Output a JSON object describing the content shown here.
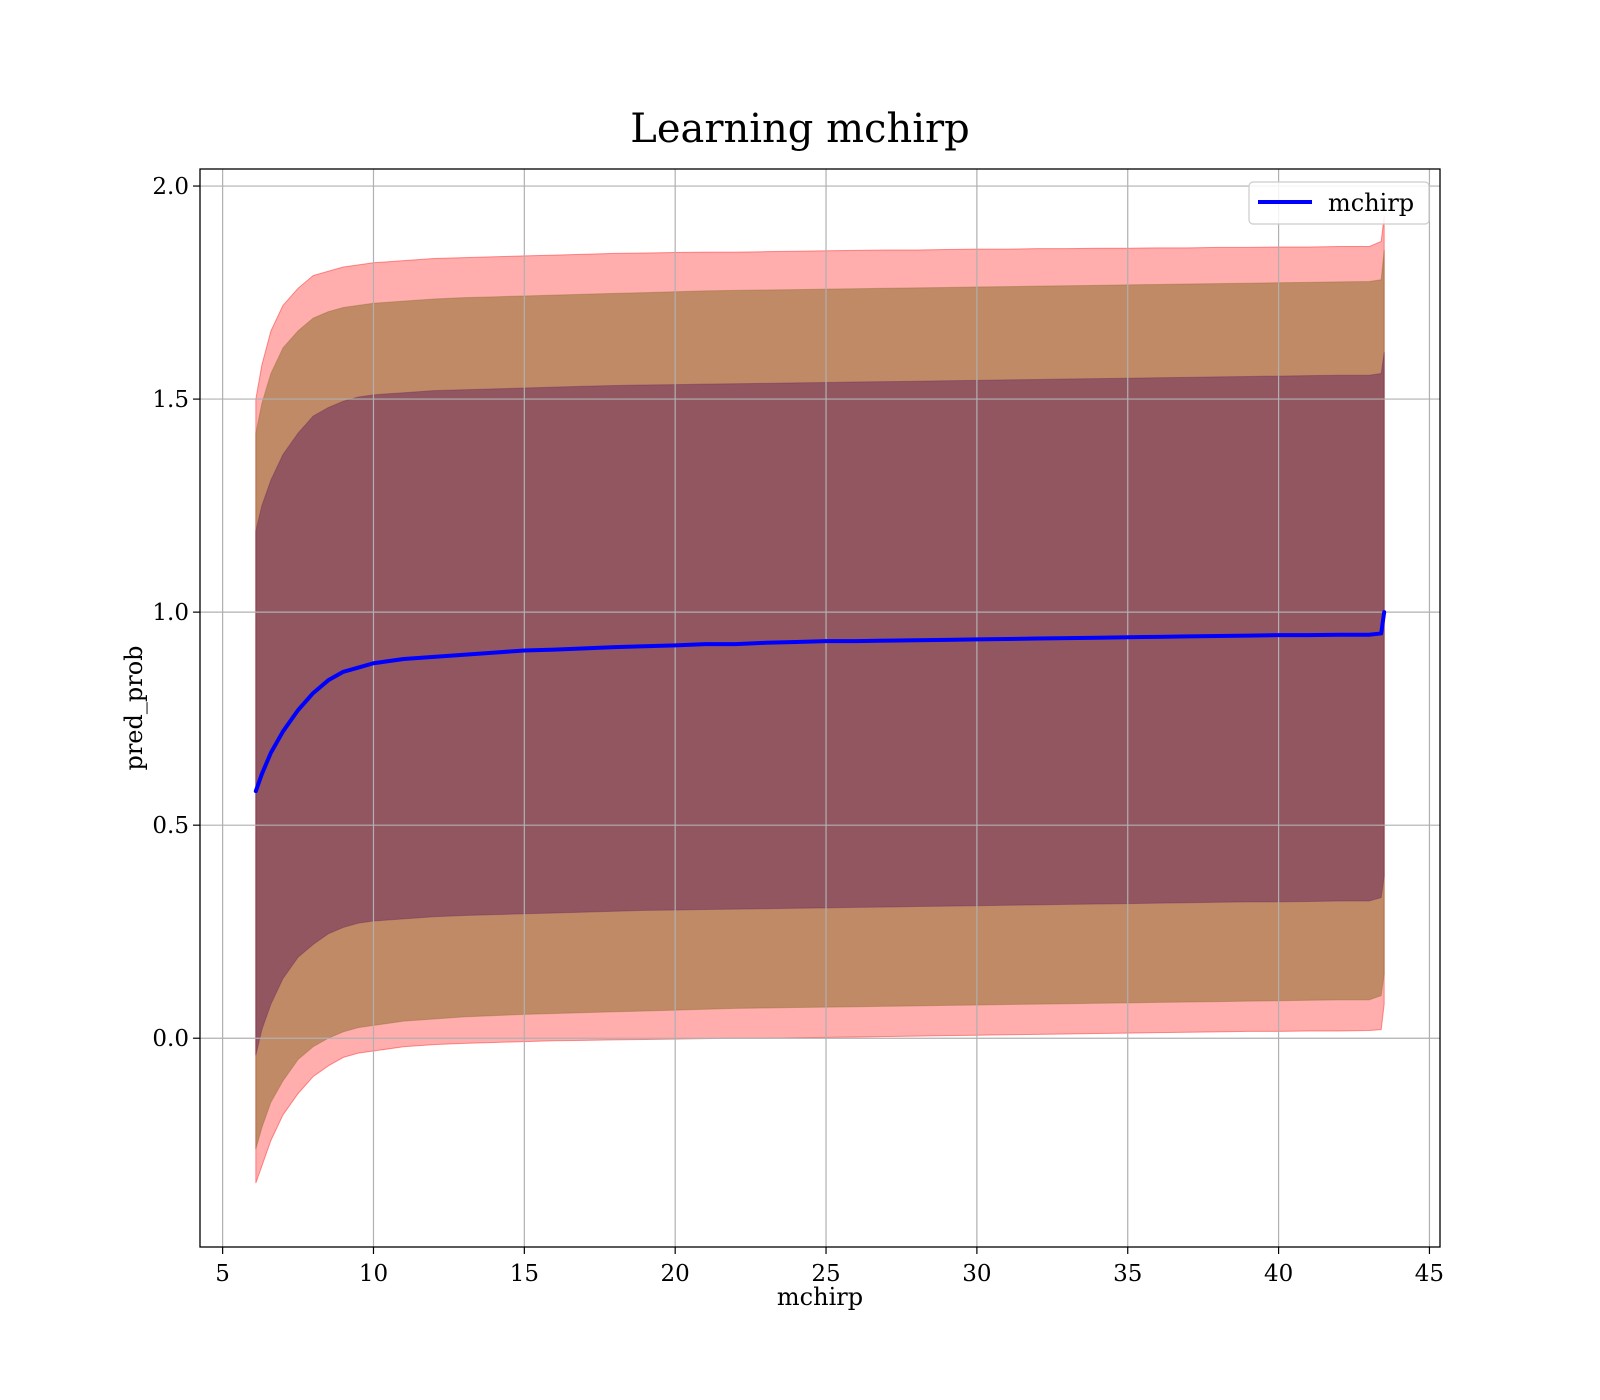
{
  "chart_data": {
    "type": "line",
    "title": "Learning mchirp",
    "xlabel": "mchirp",
    "ylabel": "pred_prob",
    "xlim": [
      4.25,
      45.35
    ],
    "ylim": [
      -0.49,
      2.04
    ],
    "xticks": [
      5,
      10,
      15,
      20,
      25,
      30,
      35,
      40,
      45
    ],
    "yticks": [
      0.0,
      0.5,
      1.0,
      1.5,
      2.0
    ],
    "ytick_labels": [
      "0.0",
      "0.5",
      "1.0",
      "1.5",
      "2.0"
    ],
    "grid": true,
    "legend": {
      "position": "top-right",
      "entries": [
        "mchirp"
      ]
    },
    "colors": {
      "line": "#0000ff",
      "band_outer": "#ff0000",
      "band_middle": "#8c6d2c",
      "band_inner": "#6b2b5c",
      "grid": "#b0b0b0"
    },
    "x": [
      6.1,
      6.3,
      6.6,
      7.0,
      7.5,
      8.0,
      8.5,
      9.0,
      9.5,
      10.0,
      11.0,
      12.0,
      13.0,
      14.0,
      15.0,
      16.0,
      17.0,
      18.0,
      19.0,
      20.0,
      21.0,
      22.0,
      23.0,
      24.0,
      25.0,
      26.0,
      27.0,
      28.0,
      29.0,
      30.0,
      31.0,
      32.0,
      33.0,
      34.0,
      35.0,
      36.0,
      37.0,
      38.0,
      39.0,
      40.0,
      41.0,
      42.0,
      43.0,
      43.4,
      43.5
    ],
    "series": [
      {
        "name": "mchirp",
        "values": [
          0.58,
          0.62,
          0.67,
          0.72,
          0.77,
          0.81,
          0.84,
          0.86,
          0.87,
          0.88,
          0.89,
          0.895,
          0.9,
          0.905,
          0.91,
          0.912,
          0.915,
          0.918,
          0.92,
          0.922,
          0.925,
          0.925,
          0.928,
          0.93,
          0.932,
          0.932,
          0.933,
          0.934,
          0.935,
          0.936,
          0.937,
          0.938,
          0.939,
          0.94,
          0.941,
          0.942,
          0.943,
          0.944,
          0.945,
          0.946,
          0.946,
          0.947,
          0.947,
          0.95,
          1.0
        ]
      }
    ],
    "bands": [
      {
        "level": "outer",
        "upper": [
          1.5,
          1.58,
          1.66,
          1.72,
          1.76,
          1.79,
          1.8,
          1.81,
          1.815,
          1.82,
          1.825,
          1.83,
          1.832,
          1.834,
          1.836,
          1.838,
          1.84,
          1.842,
          1.843,
          1.844,
          1.845,
          1.845,
          1.846,
          1.847,
          1.848,
          1.849,
          1.85,
          1.85,
          1.851,
          1.852,
          1.852,
          1.853,
          1.853,
          1.854,
          1.854,
          1.855,
          1.855,
          1.856,
          1.856,
          1.857,
          1.857,
          1.858,
          1.858,
          1.87,
          1.93
        ],
        "lower": [
          -0.34,
          -0.3,
          -0.24,
          -0.18,
          -0.13,
          -0.09,
          -0.065,
          -0.045,
          -0.035,
          -0.03,
          -0.02,
          -0.015,
          -0.012,
          -0.01,
          -0.008,
          -0.006,
          -0.005,
          -0.004,
          -0.003,
          -0.002,
          -0.001,
          0.0,
          0.0,
          0.001,
          0.002,
          0.003,
          0.004,
          0.005,
          0.006,
          0.007,
          0.008,
          0.009,
          0.01,
          0.011,
          0.012,
          0.013,
          0.014,
          0.015,
          0.016,
          0.016,
          0.017,
          0.017,
          0.018,
          0.02,
          0.08
        ]
      },
      {
        "level": "middle",
        "upper": [
          1.42,
          1.49,
          1.56,
          1.62,
          1.66,
          1.69,
          1.705,
          1.715,
          1.72,
          1.725,
          1.73,
          1.735,
          1.738,
          1.74,
          1.742,
          1.744,
          1.746,
          1.748,
          1.75,
          1.752,
          1.754,
          1.755,
          1.756,
          1.757,
          1.758,
          1.759,
          1.76,
          1.761,
          1.762,
          1.763,
          1.764,
          1.765,
          1.766,
          1.767,
          1.768,
          1.769,
          1.77,
          1.771,
          1.772,
          1.773,
          1.774,
          1.775,
          1.776,
          1.78,
          1.85
        ],
        "lower": [
          -0.26,
          -0.21,
          -0.15,
          -0.1,
          -0.05,
          -0.02,
          0.0,
          0.015,
          0.025,
          0.03,
          0.04,
          0.045,
          0.05,
          0.053,
          0.056,
          0.058,
          0.06,
          0.062,
          0.064,
          0.066,
          0.068,
          0.07,
          0.071,
          0.072,
          0.073,
          0.074,
          0.075,
          0.076,
          0.077,
          0.078,
          0.079,
          0.08,
          0.081,
          0.082,
          0.083,
          0.084,
          0.085,
          0.086,
          0.087,
          0.088,
          0.089,
          0.09,
          0.09,
          0.1,
          0.15
        ]
      },
      {
        "level": "inner",
        "upper": [
          1.19,
          1.25,
          1.31,
          1.37,
          1.42,
          1.46,
          1.48,
          1.495,
          1.505,
          1.51,
          1.515,
          1.52,
          1.522,
          1.524,
          1.526,
          1.528,
          1.53,
          1.532,
          1.533,
          1.534,
          1.535,
          1.536,
          1.537,
          1.538,
          1.539,
          1.54,
          1.541,
          1.542,
          1.543,
          1.544,
          1.545,
          1.546,
          1.547,
          1.548,
          1.549,
          1.55,
          1.551,
          1.552,
          1.553,
          1.554,
          1.555,
          1.556,
          1.556,
          1.56,
          1.61
        ],
        "lower": [
          -0.04,
          0.02,
          0.08,
          0.14,
          0.19,
          0.22,
          0.245,
          0.26,
          0.27,
          0.275,
          0.28,
          0.285,
          0.288,
          0.29,
          0.292,
          0.294,
          0.296,
          0.298,
          0.3,
          0.301,
          0.302,
          0.303,
          0.304,
          0.305,
          0.306,
          0.307,
          0.308,
          0.309,
          0.31,
          0.311,
          0.312,
          0.313,
          0.314,
          0.315,
          0.316,
          0.317,
          0.318,
          0.319,
          0.32,
          0.32,
          0.321,
          0.322,
          0.322,
          0.33,
          0.38
        ]
      }
    ]
  }
}
